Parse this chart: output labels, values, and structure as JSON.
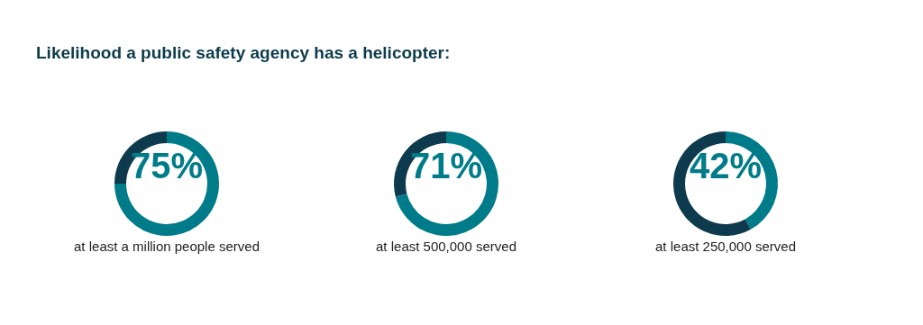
{
  "chart_data": [
    {
      "type": "donut",
      "title": "Likelihood a public safety agency has a helicopter:",
      "categories": [
        null,
        null
      ],
      "values": [
        75,
        25
      ],
      "colors": [
        "#007b8a",
        "#0d3b4d"
      ],
      "value_labels": [
        "75%",
        null
      ],
      "xlabel": "at least a million people served"
    },
    {
      "type": "donut",
      "categories": [
        null,
        null
      ],
      "values": [
        71,
        29
      ],
      "colors": [
        "#007b8a",
        "#0d3b4d"
      ],
      "value_labels": [
        "71%",
        null
      ],
      "xlabel": "at least 500,000 served"
    },
    {
      "type": "donut",
      "categories": [
        null,
        null
      ],
      "values": [
        42,
        58
      ],
      "colors": [
        "#007b8a",
        "#0d3b4d"
      ],
      "value_labels": [
        "42%",
        null
      ],
      "xlabel": "at least 250,000 served"
    }
  ]
}
